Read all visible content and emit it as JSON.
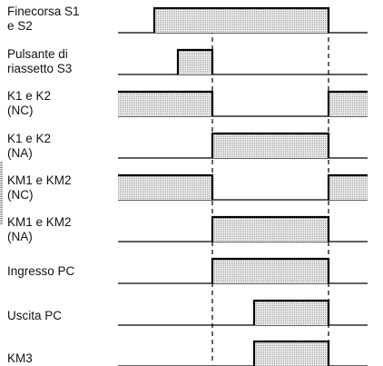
{
  "signals": [
    {
      "id": "finecorsa",
      "lines": [
        "Finecorsa S1",
        "e S2"
      ],
      "high": [
        [
          170,
          362
        ]
      ]
    },
    {
      "id": "pulsante",
      "lines": [
        "Pulsante di",
        "riassetto S3"
      ],
      "high": [
        [
          196,
          234
        ]
      ]
    },
    {
      "id": "k1k2-nc",
      "lines": [
        "K1 e K2",
        "(NC)"
      ],
      "high": [
        [
          130,
          234
        ],
        [
          362,
          405
        ]
      ]
    },
    {
      "id": "k1k2-na",
      "lines": [
        "K1 e K2",
        "(NA)"
      ],
      "high": [
        [
          234,
          362
        ]
      ]
    },
    {
      "id": "km1km2-nc",
      "lines": [
        "KM1 e KM2",
        "(NC)"
      ],
      "high": [
        [
          130,
          234
        ],
        [
          362,
          405
        ]
      ]
    },
    {
      "id": "km1km2-na",
      "lines": [
        "KM1 e KM2",
        "(NA)"
      ],
      "high": [
        [
          234,
          362
        ]
      ]
    },
    {
      "id": "ingresso-pc",
      "lines": [
        "Ingresso PC"
      ],
      "high": [
        [
          234,
          362
        ]
      ]
    },
    {
      "id": "uscita-pc",
      "lines": [
        "Uscita PC"
      ],
      "high": [
        [
          280,
          362
        ]
      ]
    },
    {
      "id": "km3",
      "lines": [
        "KM3"
      ],
      "high": [
        [
          280,
          362
        ]
      ]
    }
  ],
  "colors": {
    "fill": "#cfcfcf",
    "line": "#000000"
  }
}
